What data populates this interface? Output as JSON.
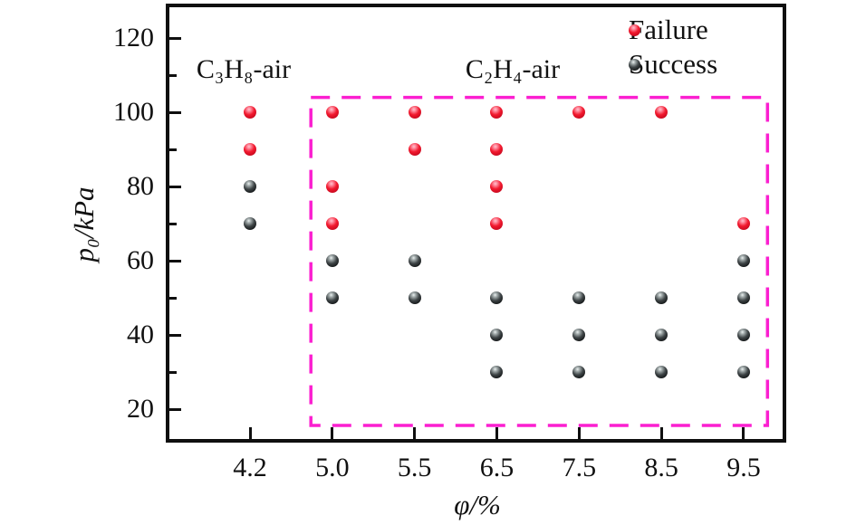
{
  "figure": {
    "background": "#ffffff",
    "frame_color": "#0f0f0f",
    "highlight_color": "#fb1fd0",
    "failure_color": "#f2192e",
    "success_color": "#1c2022"
  },
  "chart_data": {
    "type": "scatter",
    "title": "",
    "xlabel": "φ/%",
    "ylabel": "p₀/kPa",
    "x_categories": [
      "4.2",
      "5.0",
      "5.5",
      "6.5",
      "7.5",
      "8.5",
      "9.5"
    ],
    "y_ticks": [
      120,
      100,
      80,
      60,
      40,
      20
    ],
    "y_minor_ticks": [
      110,
      90,
      70,
      50,
      30
    ],
    "y_range_displayed": [
      11,
      128
    ],
    "grid": false,
    "legend_position": "top-right-inside",
    "series": [
      {
        "name": "Failure",
        "marker": "sphere",
        "color": "#f2192e",
        "points": [
          [
            "4.2",
            100
          ],
          [
            "4.2",
            90
          ],
          [
            "5.0",
            100
          ],
          [
            "5.0",
            80
          ],
          [
            "5.0",
            70
          ],
          [
            "5.5",
            100
          ],
          [
            "5.5",
            90
          ],
          [
            "6.5",
            100
          ],
          [
            "6.5",
            90
          ],
          [
            "6.5",
            80
          ],
          [
            "6.5",
            70
          ],
          [
            "7.5",
            100
          ],
          [
            "8.5",
            100
          ],
          [
            "9.5",
            70
          ]
        ]
      },
      {
        "name": "Success",
        "marker": "sphere",
        "color": "#1c2022",
        "points": [
          [
            "4.2",
            80
          ],
          [
            "4.2",
            70
          ],
          [
            "5.0",
            60
          ],
          [
            "5.0",
            50
          ],
          [
            "5.5",
            60
          ],
          [
            "5.5",
            50
          ],
          [
            "6.5",
            50
          ],
          [
            "6.5",
            40
          ],
          [
            "6.5",
            30
          ],
          [
            "7.5",
            50
          ],
          [
            "7.5",
            40
          ],
          [
            "7.5",
            30
          ],
          [
            "8.5",
            50
          ],
          [
            "8.5",
            40
          ],
          [
            "8.5",
            30
          ],
          [
            "9.5",
            60
          ],
          [
            "9.5",
            50
          ],
          [
            "9.5",
            40
          ],
          [
            "9.5",
            30
          ]
        ]
      }
    ],
    "annotations": [
      {
        "text": "C₃H₈-air"
      },
      {
        "text": "C₂H₄-air"
      }
    ],
    "highlight_box": {
      "style": "dashed",
      "color": "#fb1fd0",
      "x_index_range": [
        0.74,
        6.29
      ],
      "y_value_range": [
        15.6,
        104
      ]
    }
  }
}
